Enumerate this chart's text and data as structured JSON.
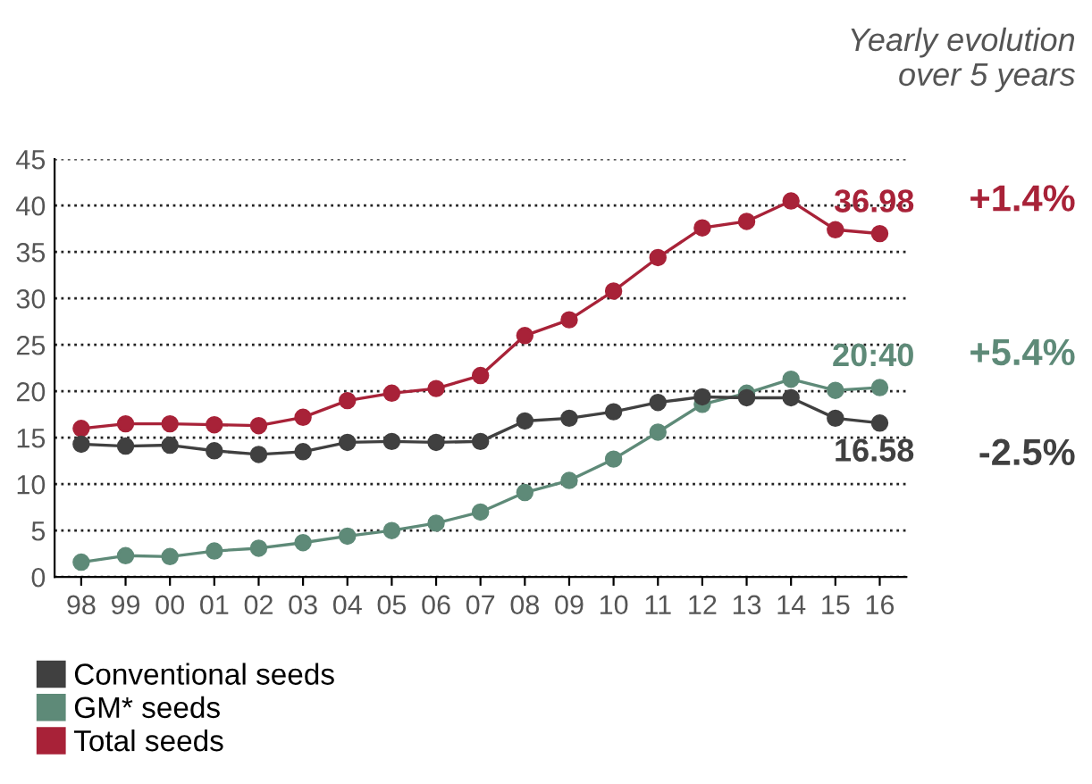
{
  "chart_data": {
    "type": "line",
    "title": "Yearly evolution\nover 5 years",
    "categories": [
      "98",
      "99",
      "00",
      "01",
      "02",
      "03",
      "04",
      "05",
      "06",
      "07",
      "08",
      "09",
      "10",
      "11",
      "12",
      "13",
      "14",
      "15",
      "16"
    ],
    "series": [
      {
        "name": "Conventional seeds",
        "color": "#404040",
        "values": [
          14.3,
          14.1,
          14.2,
          13.6,
          13.2,
          13.5,
          14.5,
          14.6,
          14.5,
          14.6,
          16.8,
          17.1,
          17.8,
          18.8,
          19.4,
          19.3,
          19.3,
          17.1,
          16.58
        ],
        "value_labels": [
          null,
          null,
          null,
          null,
          null,
          null,
          null,
          null,
          null,
          null,
          null,
          null,
          null,
          null,
          null,
          null,
          null,
          null,
          "16.58"
        ]
      },
      {
        "name": "GM* seeds",
        "color": "#5e8a78",
        "values": [
          1.6,
          2.3,
          2.2,
          2.8,
          3.1,
          3.7,
          4.4,
          5.0,
          5.8,
          7.0,
          9.1,
          10.4,
          12.7,
          15.6,
          18.6,
          19.8,
          21.3,
          20.1,
          20.4
        ],
        "value_labels": [
          null,
          null,
          null,
          null,
          null,
          null,
          null,
          null,
          null,
          null,
          null,
          null,
          null,
          null,
          null,
          null,
          null,
          null,
          null
        ]
      },
      {
        "name": "Total seeds",
        "color": "#a82238",
        "values": [
          16.0,
          16.5,
          16.5,
          16.4,
          16.3,
          17.2,
          19.0,
          19.8,
          20.3,
          21.7,
          26.0,
          27.7,
          30.8,
          34.4,
          37.6,
          38.3,
          40.5,
          37.4,
          36.98
        ],
        "value_labels": [
          null,
          null,
          null,
          null,
          null,
          null,
          null,
          null,
          null,
          null,
          null,
          null,
          null,
          null,
          null,
          null,
          null,
          null,
          "36.98"
        ]
      }
    ],
    "annotations": [
      "+1.4%",
      "+5.4%",
      "-2.5%",
      {
        "text": "20:40",
        "x": "16",
        "y": 20.4
      }
    ],
    "ylim": [
      0,
      45
    ],
    "yticks": [
      0,
      5,
      10,
      15,
      20,
      25,
      30,
      35,
      40,
      45
    ],
    "grid": "y",
    "legend": "bottom left",
    "marker": "circle",
    "line_style": "solid"
  }
}
